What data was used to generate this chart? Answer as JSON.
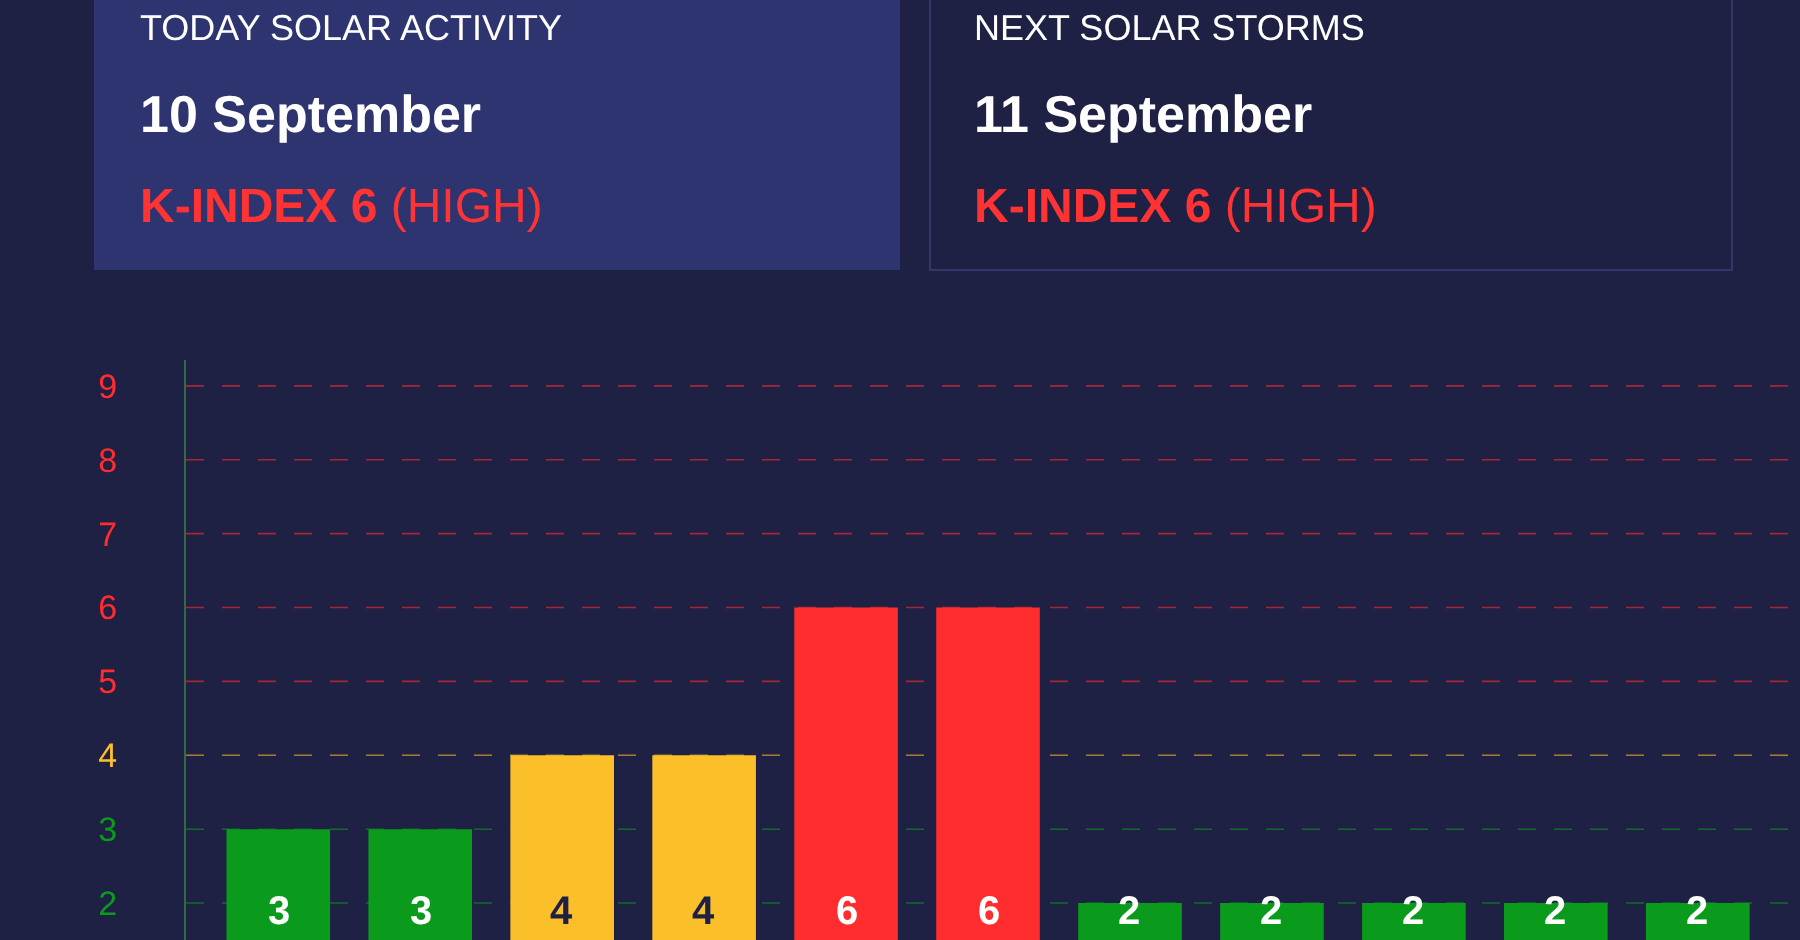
{
  "chart_data": {
    "type": "bar",
    "annotations": [
      "TODAY SOLAR ACTIVITY",
      "10 September",
      "K-INDEX 6 (HIGH)",
      "NEXT SOLAR STORMS",
      "11 September",
      "K-INDEX 6 (HIGH)"
    ],
    "categories": [
      null,
      null,
      null,
      null,
      null,
      null,
      null,
      null,
      null,
      null,
      null
    ],
    "values": [
      3,
      3,
      4,
      4,
      6,
      6,
      2,
      2,
      2,
      2,
      2
    ],
    "colors": [
      "#0a9b1c",
      "#0a9b1c",
      "#fbbf2a",
      "#fbbf2a",
      "#ff2d2d",
      "#ff2d2d",
      "#0a9b1c",
      "#0a9b1c",
      "#0a9b1c",
      "#0a9b1c",
      "#0a9b1c"
    ],
    "data_labels": true,
    "ylim": [
      1.5,
      9.35
    ],
    "yticks": [
      2,
      3,
      4,
      5,
      6,
      7,
      8,
      9
    ],
    "ref_lines": [
      {
        "axis": "y",
        "value": 2,
        "color": "#0a9b1c",
        "line_style": "dashed"
      },
      {
        "axis": "y",
        "value": 3,
        "color": "#0a9b1c",
        "line_style": "dashed"
      },
      {
        "axis": "y",
        "value": 4,
        "color": "#fbbf2a",
        "line_style": "dashed"
      },
      {
        "axis": "y",
        "value": 5,
        "color": "#ff2d2d",
        "line_style": "dashed"
      },
      {
        "axis": "y",
        "value": 6,
        "color": "#ff2d2d",
        "line_style": "dashed"
      },
      {
        "axis": "y",
        "value": 7,
        "color": "#ff2d2d",
        "line_style": "dashed"
      },
      {
        "axis": "y",
        "value": 8,
        "color": "#ff2d2d",
        "line_style": "dashed"
      },
      {
        "axis": "y",
        "value": 9,
        "color": "#ff2d2d",
        "line_style": "dashed"
      }
    ]
  }
}
